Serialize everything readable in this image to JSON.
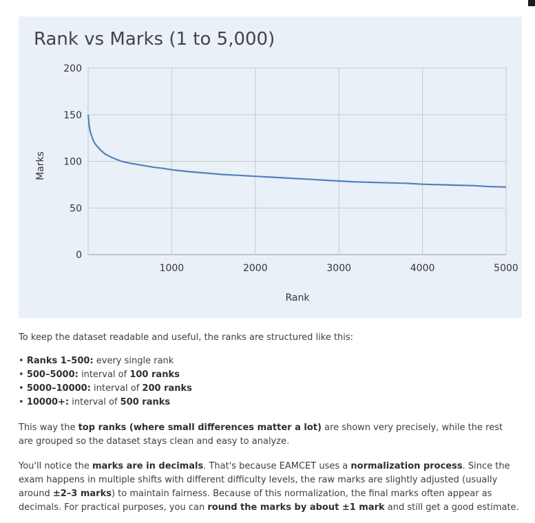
{
  "chart_data": {
    "type": "line",
    "title": "Rank vs Marks (1 to 5,000)",
    "xlabel": "Rank",
    "ylabel": "Marks",
    "xlim": [
      0,
      5000
    ],
    "ylim": [
      0,
      200
    ],
    "x_ticks": [
      1000,
      2000,
      3000,
      4000,
      5000
    ],
    "y_ticks": [
      0,
      50,
      100,
      150,
      200
    ],
    "grid": true,
    "line_color": "#4f81bd",
    "series": [
      {
        "x": [
          1,
          10,
          25,
          50,
          75,
          100,
          150,
          200,
          300,
          400,
          500,
          600,
          700,
          800,
          900,
          1000,
          1200,
          1400,
          1600,
          1800,
          2000,
          2200,
          2400,
          2600,
          2800,
          3000,
          3200,
          3400,
          3600,
          3800,
          4000,
          4200,
          4400,
          4600,
          4800,
          5000
        ],
        "y": [
          150,
          140,
          132,
          125,
          120,
          117,
          112,
          108,
          103.5,
          100,
          98,
          96.5,
          95,
          93.5,
          92.5,
          91,
          89,
          87.5,
          86,
          85,
          84,
          83,
          82,
          81,
          80,
          79,
          78,
          77.5,
          77,
          76.5,
          75.5,
          75,
          74.5,
          74,
          73,
          72.5
        ]
      }
    ]
  },
  "text": {
    "intro": "To keep the dataset readable and useful, the ranks are structured like this:",
    "list": [
      {
        "bold": "Ranks 1–500:",
        "rest": " every single rank",
        "bold2": ""
      },
      {
        "bold": "500–5000:",
        "rest": " interval of ",
        "bold2": "100 ranks"
      },
      {
        "bold": "5000–10000:",
        "rest": " interval of ",
        "bold2": "200 ranks"
      },
      {
        "bold": "10000+:",
        "rest": " interval of ",
        "bold2": "500 ranks"
      }
    ],
    "para1": {
      "p1": "This way the ",
      "b1": "top ranks (where small differences matter a lot)",
      "p2": " are shown very precisely, while the rest are grouped so the dataset stays clean and easy to analyze."
    },
    "para2": {
      "p1": "You'll notice the ",
      "b1": "marks are in decimals",
      "p2": ". That's because EAMCET uses a ",
      "b2": "normalization process",
      "p3": ". Since the exam happens in multiple shifts with different difficulty levels, the raw marks are slightly adjusted (usually around ",
      "b3": "±2–3 marks",
      "p4": ") to maintain fairness. Because of this normalization, the final marks often appear as decimals. For practical purposes, you can ",
      "b4": "round the marks by about ±1 mark",
      "p5": " and still get a good estimate."
    }
  }
}
